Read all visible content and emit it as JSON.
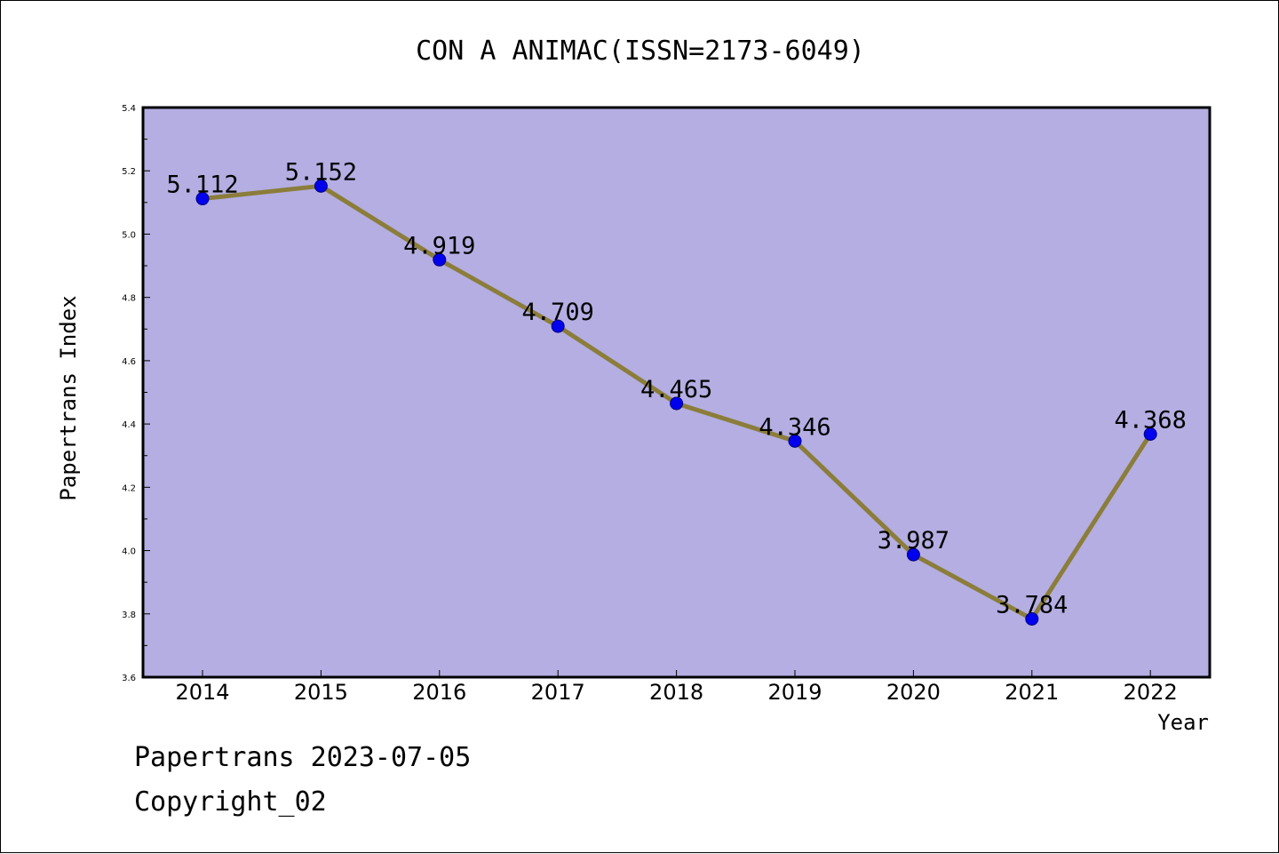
{
  "chart_data": {
    "type": "line",
    "title": "CON A ANIMAC(ISSN=2173-6049)",
    "xlabel": "Year",
    "ylabel": "Papertrans Index",
    "categories": [
      "2014",
      "2015",
      "2016",
      "2017",
      "2018",
      "2019",
      "2020",
      "2021",
      "2022"
    ],
    "series": [
      {
        "values": [
          5.112,
          5.152,
          4.919,
          4.709,
          4.465,
          4.346,
          3.987,
          3.784,
          4.368
        ],
        "labels": [
          "5.112",
          "5.152",
          "4.919",
          "4.709",
          "4.465",
          "4.346",
          "3.987",
          "3.784",
          "4.368"
        ]
      }
    ],
    "ylim": [
      3.6,
      5.4
    ],
    "yticks": [
      "3.6",
      "3.8",
      "4.0",
      "4.2",
      "4.4",
      "4.6",
      "4.8",
      "5.0",
      "5.2",
      "5.4"
    ],
    "grid": false,
    "legend": "none",
    "colors": {
      "plot_background": "#b4aee2",
      "line": "#8b7d3a",
      "marker": "#0000ee",
      "marker_edge": "#000080"
    }
  },
  "footer": {
    "line1": "Papertrans 2023-07-05",
    "line2": "Copyright_02"
  }
}
